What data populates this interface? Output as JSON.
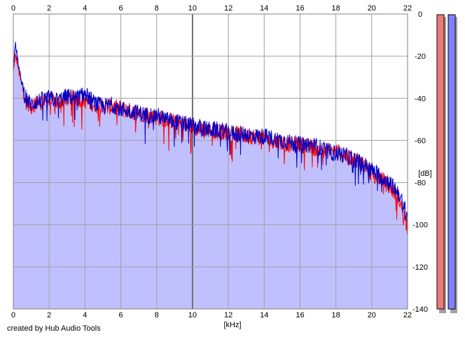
{
  "chart_data": {
    "type": "area",
    "xlabel": "[kHz]",
    "ylabel": "[dB]",
    "xlim": [
      0,
      22
    ],
    "ylim": [
      -140,
      0
    ],
    "x_ticks": [
      0,
      2,
      4,
      6,
      8,
      10,
      12,
      14,
      16,
      18,
      20,
      22
    ],
    "y_ticks": [
      0,
      -20,
      -40,
      -60,
      -80,
      -100,
      -120,
      -140
    ],
    "grid": true,
    "colors": {
      "left": "#ff0000",
      "right": "#0000c8",
      "fill": "#c0c0ff",
      "meter_left": "#f07a7a",
      "meter_right": "#8080ff"
    },
    "series": [
      {
        "x": [
          0,
          0.1,
          0.2,
          0.3,
          0.4,
          0.5,
          0.6,
          0.8,
          1,
          1.2,
          1.5,
          2,
          2.5,
          3,
          3.5,
          4,
          4.5,
          5,
          5.5,
          6,
          6.5,
          7,
          7.5,
          8,
          8.5,
          9,
          9.5,
          10,
          10.5,
          11,
          11.5,
          12,
          12.5,
          13,
          13.5,
          14,
          14.5,
          15,
          15.5,
          16,
          16.5,
          17,
          17.5,
          18,
          18.5,
          19,
          19.5,
          20,
          20.5,
          21,
          21.5,
          22
        ],
        "values": [
          -28,
          -20,
          -22,
          -27,
          -31,
          -34,
          -38,
          -42,
          -44,
          -42,
          -42,
          -41,
          -42,
          -40,
          -40,
          -41,
          -43,
          -44,
          -44,
          -45,
          -46,
          -47,
          -48,
          -49,
          -50,
          -51,
          -53,
          -53,
          -55,
          -55,
          -56,
          -56,
          -57,
          -58,
          -58,
          -59,
          -60,
          -61,
          -62,
          -62,
          -63,
          -64,
          -65,
          -65,
          -67,
          -69,
          -71,
          -76,
          -78,
          -82,
          -87,
          -101
        ]
      },
      {
        "x": [
          0,
          0.1,
          0.2,
          0.3,
          0.4,
          0.5,
          0.6,
          0.8,
          1,
          1.2,
          1.5,
          2,
          2.5,
          3,
          3.5,
          4,
          4.5,
          5,
          5.5,
          6,
          6.5,
          7,
          7.5,
          8,
          8.5,
          9,
          9.5,
          10,
          10.5,
          11,
          11.5,
          12,
          12.5,
          13,
          13.5,
          14,
          14.5,
          15,
          15.5,
          16,
          16.5,
          17,
          17.5,
          18,
          18.5,
          19,
          19.5,
          20,
          20.5,
          21,
          21.5,
          22
        ],
        "values": [
          -25,
          -14,
          -19,
          -25,
          -30,
          -33,
          -37,
          -41,
          -43,
          -42,
          -41,
          -40,
          -41,
          -39,
          -40,
          -38,
          -42,
          -44,
          -43,
          -45,
          -46,
          -47,
          -48,
          -48,
          -50,
          -51,
          -52,
          -53,
          -54,
          -55,
          -55,
          -56,
          -57,
          -57,
          -58,
          -58,
          -59,
          -60,
          -61,
          -62,
          -62,
          -63,
          -65,
          -66,
          -67,
          -69,
          -71,
          -74,
          -77,
          -80,
          -85,
          -96
        ]
      }
    ]
  },
  "footer": {
    "credit": "created by Hub Audio Tools"
  }
}
